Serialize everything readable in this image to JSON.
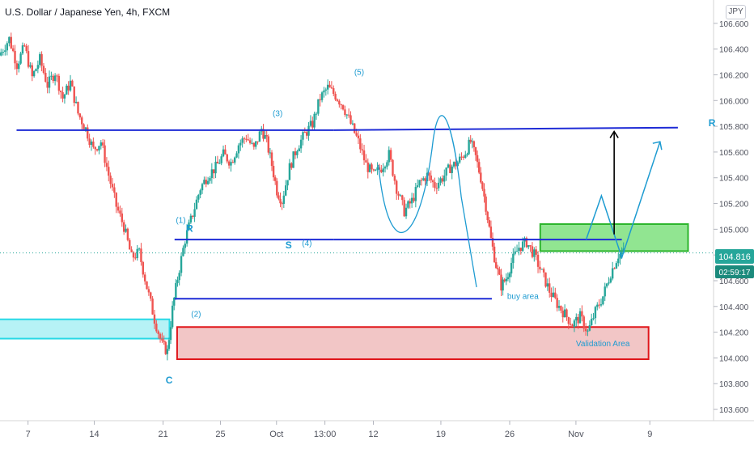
{
  "header": {
    "title": "U.S. Dollar / Japanese Yen, 4h, FXCM",
    "currency_button": "JPY"
  },
  "colors": {
    "up": "#26a69a",
    "down": "#ef5350",
    "level_line": "#1e2bd6",
    "annotation": "#1d9bd1",
    "buy_zone_fill": "#7ee07e",
    "buy_zone_border": "#2db52d",
    "validation_fill": "#f0bcbc",
    "validation_border": "#e0161b",
    "left_zone_fill": "#a9f0f4",
    "left_zone_border": "#27d9e6",
    "price_badge": "#26a69a",
    "timer_badge": "#1b8a7c",
    "arrow_black": "#000000"
  },
  "chart_data": {
    "type": "candlestick",
    "symbol": "USDJPY",
    "timeframe": "4h",
    "source": "FXCM",
    "ylim": [
      103.55,
      106.75
    ],
    "y_ticks": [
      "106.600",
      "106.400",
      "106.200",
      "106.000",
      "105.800",
      "105.600",
      "105.400",
      "105.200",
      "105.000",
      "104.800",
      "104.600",
      "104.400",
      "104.200",
      "104.000",
      "103.800",
      "103.600"
    ],
    "x_ticks": [
      "7",
      "14",
      "21",
      "25",
      "Oct",
      "13:00",
      "12",
      "19",
      "26",
      "Nov",
      "9"
    ],
    "last_price": "104.816",
    "countdown": "02:59:17",
    "path_points": [
      [
        0,
        106.35
      ],
      [
        8,
        106.48
      ],
      [
        14,
        106.28
      ],
      [
        20,
        106.42
      ],
      [
        26,
        106.18
      ],
      [
        32,
        106.32
      ],
      [
        38,
        106.12
      ],
      [
        44,
        106.22
      ],
      [
        50,
        106.02
      ],
      [
        56,
        106.14
      ],
      [
        62,
        105.9
      ],
      [
        68,
        105.78
      ],
      [
        74,
        105.62
      ],
      [
        80,
        105.68
      ],
      [
        86,
        105.42
      ],
      [
        92,
        105.18
      ],
      [
        98,
        105.02
      ],
      [
        104,
        104.78
      ],
      [
        110,
        104.82
      ],
      [
        116,
        104.55
      ],
      [
        122,
        104.3
      ],
      [
        128,
        104.1
      ],
      [
        132,
        104.05
      ],
      [
        136,
        104.38
      ],
      [
        140,
        104.62
      ],
      [
        146,
        104.92
      ],
      [
        152,
        105.12
      ],
      [
        158,
        105.32
      ],
      [
        164,
        105.42
      ],
      [
        170,
        105.48
      ],
      [
        176,
        105.58
      ],
      [
        182,
        105.52
      ],
      [
        188,
        105.66
      ],
      [
        194,
        105.72
      ],
      [
        200,
        105.62
      ],
      [
        206,
        105.78
      ],
      [
        210,
        105.68
      ],
      [
        214,
        105.5
      ],
      [
        218,
        105.3
      ],
      [
        222,
        105.22
      ],
      [
        228,
        105.48
      ],
      [
        234,
        105.64
      ],
      [
        240,
        105.74
      ],
      [
        246,
        105.82
      ],
      [
        252,
        106.02
      ],
      [
        258,
        106.1
      ],
      [
        264,
        106.04
      ],
      [
        270,
        105.96
      ],
      [
        276,
        105.82
      ],
      [
        282,
        105.68
      ],
      [
        288,
        105.5
      ],
      [
        294,
        105.42
      ],
      [
        300,
        105.48
      ],
      [
        306,
        105.58
      ],
      [
        312,
        105.32
      ],
      [
        318,
        105.14
      ],
      [
        324,
        105.22
      ],
      [
        330,
        105.36
      ],
      [
        336,
        105.42
      ],
      [
        342,
        105.34
      ],
      [
        348,
        105.4
      ],
      [
        354,
        105.48
      ],
      [
        360,
        105.52
      ],
      [
        366,
        105.6
      ],
      [
        370,
        105.68
      ],
      [
        374,
        105.56
      ],
      [
        378,
        105.4
      ],
      [
        382,
        105.18
      ],
      [
        386,
        104.92
      ],
      [
        390,
        104.72
      ],
      [
        394,
        104.56
      ],
      [
        398,
        104.62
      ],
      [
        402,
        104.74
      ],
      [
        408,
        104.86
      ],
      [
        414,
        104.9
      ],
      [
        420,
        104.8
      ],
      [
        426,
        104.66
      ],
      [
        432,
        104.52
      ],
      [
        438,
        104.42
      ],
      [
        444,
        104.34
      ],
      [
        450,
        104.26
      ],
      [
        456,
        104.32
      ],
      [
        462,
        104.2
      ],
      [
        468,
        104.36
      ],
      [
        474,
        104.48
      ],
      [
        480,
        104.66
      ],
      [
        486,
        104.8
      ],
      [
        490,
        104.82
      ]
    ],
    "levels": [
      {
        "id": "r-line",
        "from": 13,
        "to": 262,
        "y": 105.77
      },
      {
        "id": "s-line",
        "from": 137,
        "to": 262,
        "y": 104.92
      },
      {
        "id": "buy-line",
        "from": 137,
        "to": 386,
        "y": 104.46
      }
    ],
    "zones": [
      {
        "id": "left-zone",
        "from": -4,
        "to": 133,
        "y_top": 104.3,
        "y_bottom": 104.15
      },
      {
        "id": "validation-zone",
        "from": 139,
        "to": 509,
        "y_top": 104.24,
        "y_bottom": 103.99
      },
      {
        "id": "buy-zone",
        "from": 424,
        "to": 540,
        "y_top": 105.04,
        "y_bottom": 104.83
      }
    ],
    "wave_labels": [
      {
        "text": "(1)",
        "x": 138,
        "y": 105.05
      },
      {
        "text": "R",
        "x": 146,
        "y": 104.98
      },
      {
        "text": "S",
        "x": 224,
        "y": 104.85
      },
      {
        "text": "(4)",
        "x": 237,
        "y": 104.87
      },
      {
        "text": "(2)",
        "x": 150,
        "y": 104.32
      },
      {
        "text": "(3)",
        "x": 214,
        "y": 105.88
      },
      {
        "text": "(5)",
        "x": 278,
        "y": 106.2
      },
      {
        "text": "C",
        "x": 130,
        "y": 103.8
      },
      {
        "text": "buy area",
        "x": 398,
        "y": 104.46
      },
      {
        "text": "Validation Area",
        "x": 452,
        "y": 104.09
      },
      {
        "text": "R",
        "x": 556,
        "y": 105.8
      }
    ]
  }
}
